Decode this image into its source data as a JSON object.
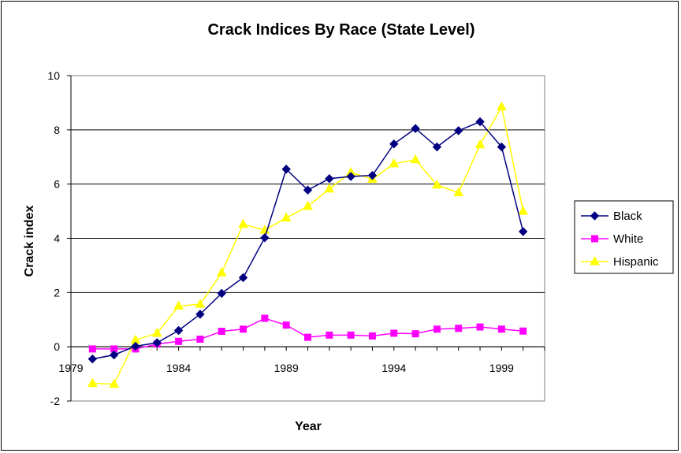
{
  "chart_data": {
    "type": "line",
    "title": "Crack Indices By Race (State Level)",
    "xlabel": "Year",
    "ylabel": "Crack index",
    "xlim": [
      1979,
      2001
    ],
    "ylim": [
      -2,
      10
    ],
    "xticks": [
      1979,
      1984,
      1989,
      1994,
      1999
    ],
    "yticks": [
      -2,
      0,
      2,
      4,
      6,
      8,
      10
    ],
    "grid": "horizontal",
    "plot_background": "#ffffff",
    "legend_position": "right",
    "x": [
      1980,
      1981,
      1982,
      1983,
      1984,
      1985,
      1986,
      1987,
      1988,
      1989,
      1990,
      1991,
      1992,
      1993,
      1994,
      1995,
      1996,
      1997,
      1998,
      1999,
      2000
    ],
    "series": [
      {
        "name": "Black",
        "color": "#000080",
        "marker": "diamond",
        "values": [
          -0.45,
          -0.3,
          0.02,
          0.15,
          0.6,
          1.2,
          1.97,
          2.55,
          4.02,
          6.55,
          5.78,
          6.2,
          6.28,
          6.32,
          7.48,
          8.05,
          7.37,
          7.97,
          8.3,
          7.37,
          4.25
        ]
      },
      {
        "name": "White",
        "color": "#ff00ff",
        "marker": "square",
        "values": [
          -0.08,
          -0.08,
          -0.08,
          0.1,
          0.2,
          0.28,
          0.57,
          0.65,
          1.05,
          0.8,
          0.35,
          0.43,
          0.43,
          0.4,
          0.5,
          0.48,
          0.65,
          0.68,
          0.73,
          0.65,
          0.58
        ]
      },
      {
        "name": "Hispanic",
        "color": "#ffff00",
        "marker": "triangle",
        "values": [
          -1.35,
          -1.38,
          0.25,
          0.5,
          1.5,
          1.57,
          2.73,
          4.52,
          4.3,
          4.75,
          5.18,
          5.82,
          6.43,
          6.18,
          6.75,
          6.9,
          5.97,
          5.68,
          7.45,
          8.85,
          5.0
        ]
      }
    ]
  }
}
